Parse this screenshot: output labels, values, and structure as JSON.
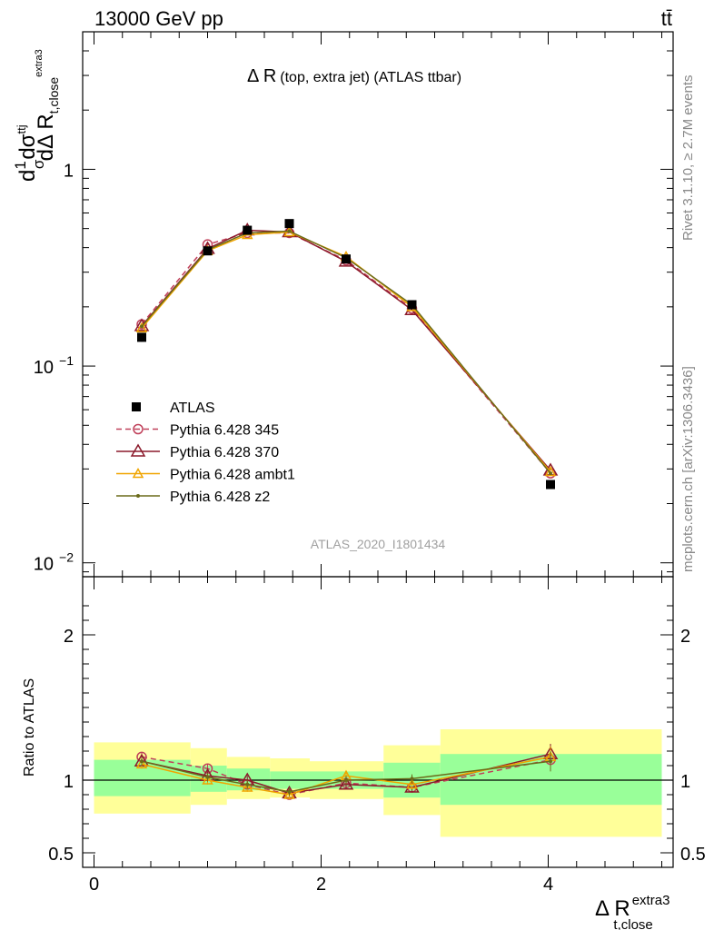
{
  "header": {
    "left": "13000 GeV pp",
    "right": "tt̄"
  },
  "side_labels": {
    "rivet": "Rivet 3.1.10, ≥ 2.7M events",
    "mcplots": "mcplots.cern.ch [arXiv:1306.3436]"
  },
  "watermark": "ATLAS_2020_I1801434",
  "title": {
    "main": "Δ R",
    "detail": "(top, extra jet) (ATLAS ttbar)"
  },
  "y_axis_label": {
    "top": "dσ",
    "top_sup": "ttj",
    "frac": "1",
    "frac_den": "σ",
    "bottom": "dΔ R",
    "bottom_sub": "t,close",
    "bottom_sup": "extra3"
  },
  "x_axis_label": {
    "main": "Δ R",
    "sup": "extra3",
    "sub": "t,close"
  },
  "ratio_label": "Ratio to ATLAS",
  "colors": {
    "data": "#000000",
    "p345": "#c0405a",
    "p370": "#8b1a2b",
    "ambt1": "#f0a500",
    "z2": "#6b6b1a",
    "band_inner": "#99ff99",
    "band_outer": "#ffff99"
  },
  "chart_data": {
    "type": "scatter",
    "x": [
      0.42,
      1.0,
      1.35,
      1.72,
      2.22,
      2.8,
      4.02
    ],
    "xlim": [
      -0.1,
      5.1
    ],
    "xticks": [
      "0",
      "2",
      "4"
    ],
    "main": {
      "yscale": "log",
      "ylim": [
        0.0085,
        5.0
      ],
      "yticks": [
        "1",
        "10",
        "10"
      ],
      "ytick_exp": [
        "",
        "−1",
        "−2"
      ],
      "series": [
        {
          "name": "ATLAS",
          "values": [
            0.14,
            0.385,
            0.49,
            0.53,
            0.35,
            0.205,
            0.025
          ]
        },
        {
          "name": "Pythia 6.428 345",
          "values": [
            0.163,
            0.415,
            0.475,
            0.475,
            0.345,
            0.196,
            0.0285
          ]
        },
        {
          "name": "Pythia 6.428 370",
          "values": [
            0.16,
            0.395,
            0.49,
            0.48,
            0.34,
            0.193,
            0.0295
          ]
        },
        {
          "name": "Pythia 6.428 ambt1",
          "values": [
            0.156,
            0.385,
            0.465,
            0.48,
            0.36,
            0.2,
            0.029
          ]
        },
        {
          "name": "Pythia 6.428 z2",
          "values": [
            0.159,
            0.39,
            0.475,
            0.485,
            0.355,
            0.205,
            0.0285
          ]
        }
      ]
    },
    "ratio": {
      "ylim": [
        0.4,
        2.4
      ],
      "yticks": [
        "0.5",
        "1",
        "2"
      ],
      "bins": [
        {
          "lo": 0.0,
          "hi": 0.85,
          "inner": [
            0.89,
            1.14
          ],
          "outer": [
            0.77,
            1.26
          ]
        },
        {
          "lo": 0.85,
          "hi": 1.17,
          "inner": [
            0.92,
            1.1
          ],
          "outer": [
            0.83,
            1.22
          ]
        },
        {
          "lo": 1.17,
          "hi": 1.55,
          "inner": [
            0.93,
            1.08
          ],
          "outer": [
            0.87,
            1.16
          ]
        },
        {
          "lo": 1.55,
          "hi": 1.9,
          "inner": [
            0.94,
            1.06
          ],
          "outer": [
            0.88,
            1.15
          ]
        },
        {
          "lo": 1.9,
          "hi": 2.55,
          "inner": [
            0.94,
            1.06
          ],
          "outer": [
            0.87,
            1.13
          ]
        },
        {
          "lo": 2.55,
          "hi": 3.05,
          "inner": [
            0.88,
            1.12
          ],
          "outer": [
            0.76,
            1.24
          ]
        },
        {
          "lo": 3.05,
          "hi": 5.0,
          "inner": [
            0.83,
            1.18
          ],
          "outer": [
            0.61,
            1.35
          ]
        }
      ],
      "series": [
        {
          "name": "Pythia 6.428 345",
          "values": [
            1.16,
            1.08,
            0.97,
            0.9,
            0.98,
            0.95,
            1.14
          ]
        },
        {
          "name": "Pythia 6.428 370",
          "values": [
            1.13,
            1.03,
            1.0,
            0.91,
            0.97,
            0.95,
            1.18
          ]
        },
        {
          "name": "Pythia 6.428 ambt1",
          "values": [
            1.11,
            1.0,
            0.95,
            0.9,
            1.03,
            0.97,
            1.16
          ]
        },
        {
          "name": "Pythia 6.428 z2",
          "values": [
            1.13,
            1.02,
            0.97,
            0.92,
            1.0,
            1.01,
            1.13
          ]
        }
      ]
    }
  }
}
